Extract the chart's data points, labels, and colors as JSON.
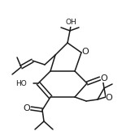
{
  "bg_color": "#ffffff",
  "lc": "#1a1a1a",
  "lw": 1.1,
  "fs": 6.5,
  "figsize": [
    1.5,
    1.62
  ],
  "dpi": 100,
  "xlim": [
    0,
    150
  ],
  "ylim": [
    0,
    162
  ]
}
